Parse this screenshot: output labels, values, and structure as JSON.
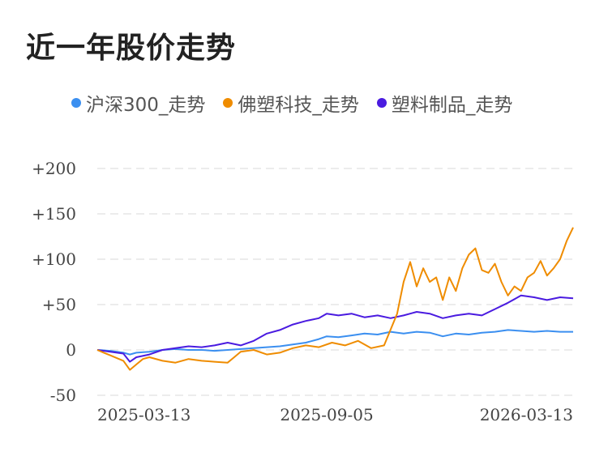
{
  "title": "近一年股价走势",
  "colors": {
    "s0": "#3b8ff0",
    "s1": "#ef8c00",
    "s2": "#4a1be0"
  },
  "chart_data": {
    "type": "line",
    "title": "近一年股价走势",
    "legend_position": "top",
    "grid": true,
    "ylim": [
      -50,
      200
    ],
    "y_ticks": [
      "+200",
      "+150",
      "+100",
      "+50",
      "0",
      "-50"
    ],
    "y_tick_values": [
      200,
      150,
      100,
      50,
      0,
      -50
    ],
    "x_ticks": [
      "2025-03-13",
      "2025-09-05",
      "2026-03-13"
    ],
    "x_tick_values": [
      0,
      176,
      365
    ],
    "x_range": [
      0,
      365
    ],
    "series": [
      {
        "name": "沪深300_走势",
        "x": [
          0,
          10,
          20,
          25,
          30,
          40,
          50,
          60,
          70,
          80,
          90,
          100,
          110,
          120,
          130,
          140,
          150,
          160,
          170,
          176,
          185,
          195,
          205,
          215,
          225,
          235,
          245,
          255,
          265,
          275,
          285,
          295,
          305,
          315,
          325,
          335,
          345,
          355,
          365
        ],
        "values": [
          0,
          -1,
          -3,
          -5,
          -3,
          -2,
          0,
          1,
          0,
          0,
          -1,
          0,
          1,
          2,
          3,
          4,
          6,
          8,
          12,
          15,
          14,
          16,
          18,
          17,
          20,
          18,
          20,
          19,
          15,
          18,
          17,
          19,
          20,
          22,
          21,
          20,
          21,
          20,
          20
        ]
      },
      {
        "name": "佛塑科技_走势",
        "x": [
          0,
          5,
          10,
          15,
          20,
          25,
          30,
          35,
          40,
          50,
          60,
          70,
          80,
          90,
          100,
          105,
          110,
          120,
          130,
          140,
          150,
          160,
          170,
          180,
          190,
          200,
          210,
          220,
          230,
          235,
          240,
          245,
          250,
          255,
          260,
          265,
          270,
          275,
          280,
          285,
          290,
          295,
          300,
          305,
          310,
          315,
          320,
          325,
          330,
          335,
          340,
          345,
          350,
          355,
          360,
          365
        ],
        "values": [
          0,
          -3,
          -6,
          -9,
          -12,
          -22,
          -16,
          -10,
          -8,
          -12,
          -14,
          -10,
          -12,
          -13,
          -14,
          -8,
          -2,
          0,
          -5,
          -3,
          2,
          5,
          3,
          8,
          5,
          10,
          2,
          5,
          40,
          75,
          97,
          70,
          90,
          75,
          80,
          55,
          80,
          65,
          90,
          105,
          112,
          88,
          85,
          95,
          75,
          60,
          70,
          65,
          80,
          85,
          98,
          82,
          90,
          100,
          120,
          135
        ]
      },
      {
        "name": "塑料制品_走势",
        "x": [
          0,
          10,
          20,
          25,
          30,
          40,
          50,
          60,
          70,
          80,
          90,
          100,
          110,
          120,
          130,
          140,
          150,
          160,
          170,
          176,
          185,
          195,
          205,
          215,
          225,
          235,
          245,
          255,
          265,
          275,
          285,
          295,
          305,
          315,
          325,
          335,
          345,
          355,
          365
        ],
        "values": [
          0,
          -2,
          -4,
          -13,
          -8,
          -5,
          0,
          2,
          4,
          3,
          5,
          8,
          5,
          10,
          18,
          22,
          28,
          32,
          35,
          40,
          38,
          40,
          36,
          38,
          35,
          38,
          42,
          40,
          35,
          38,
          40,
          38,
          45,
          52,
          60,
          58,
          55,
          58,
          57
        ]
      }
    ]
  }
}
